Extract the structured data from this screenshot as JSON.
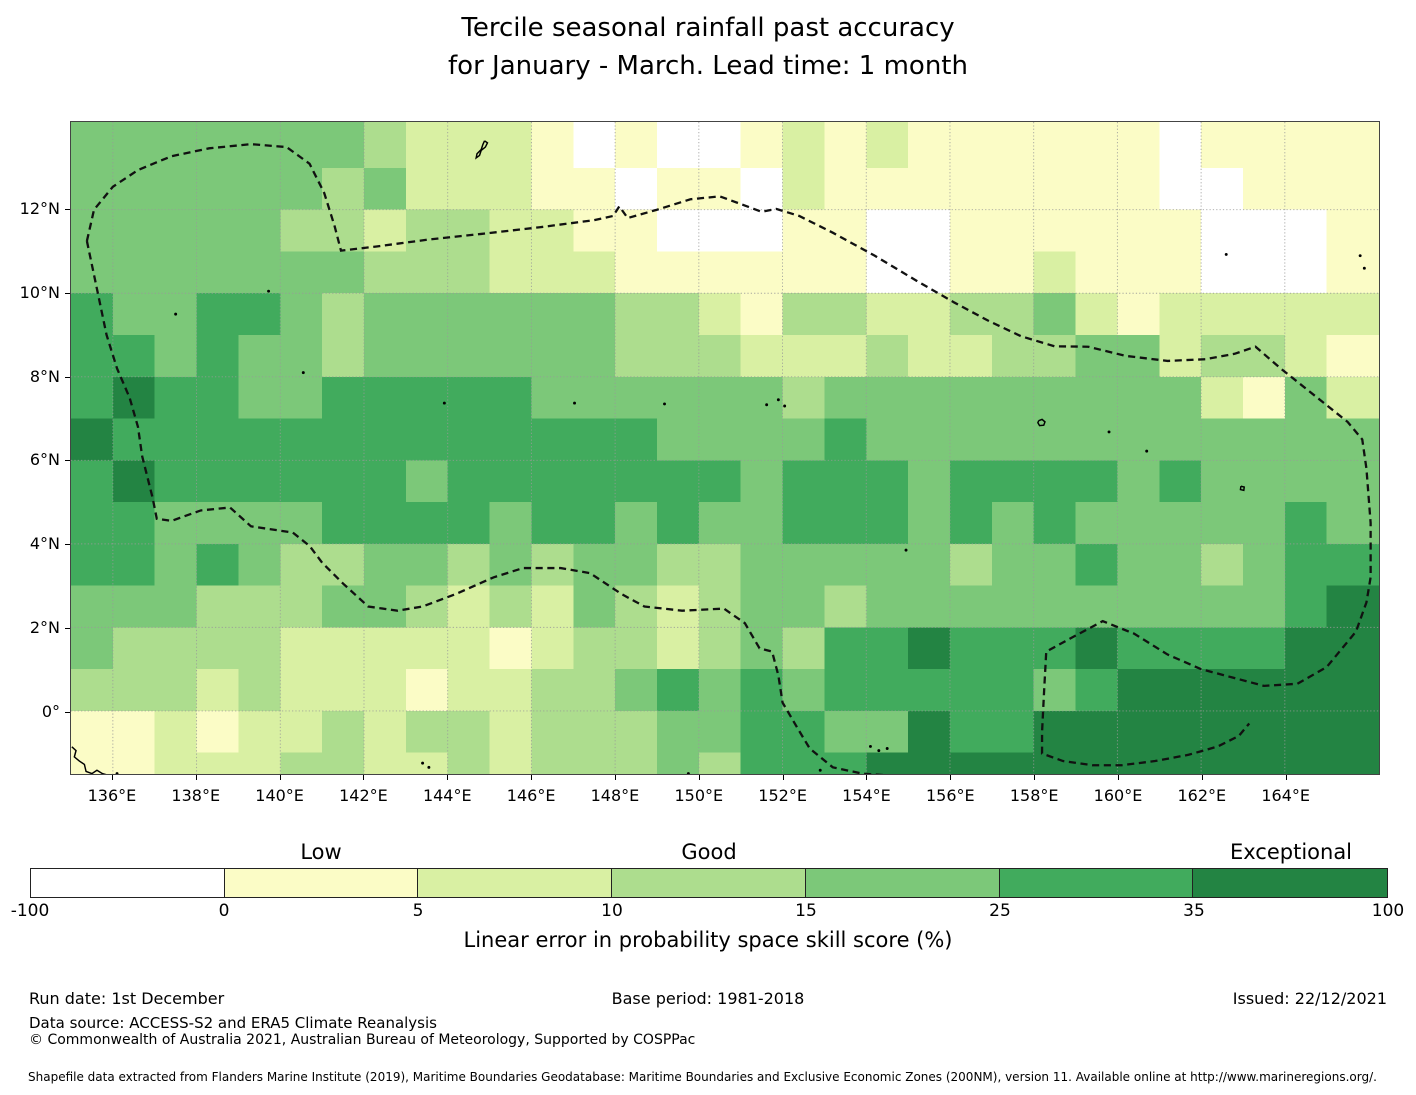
{
  "header": {
    "title_line1": "Tercile seasonal rainfall past accuracy",
    "title_line2": "for January - March. Lead time: 1 month"
  },
  "footer": {
    "run_date": "Run date: 1st December",
    "base_period": "Base period: 1981-2018",
    "issued": "Issued: 22/12/2021",
    "data_source": "Data source: ACCESS-S2 and ERA5 Climate Reanalysis",
    "copyright": "© Commonwealth of Australia 2021, Australian Bureau of Meteorology, Supported by COSPPac",
    "shapefile_note": "Shapefile data extracted from Flanders Marine Institute (2019), Maritime Boundaries Geodatabase: Maritime Boundaries and Exclusive Economic Zones (200NM), version 11. Available online at http://www.marineregions.org/."
  },
  "chart_data": {
    "type": "heatmap",
    "title": "Tercile seasonal rainfall past accuracy for January - March. Lead time: 1 month",
    "x_axis": {
      "tick_labels": [
        "136°E",
        "138°E",
        "140°E",
        "142°E",
        "144°E",
        "146°E",
        "148°E",
        "150°E",
        "152°E",
        "154°E",
        "156°E",
        "158°E",
        "160°E",
        "162°E",
        "164°E"
      ],
      "tick_lons": [
        136,
        138,
        140,
        142,
        144,
        146,
        148,
        150,
        152,
        154,
        156,
        158,
        160,
        162,
        164
      ],
      "range_lon": [
        135.0,
        166.25
      ]
    },
    "y_axis": {
      "tick_labels": [
        "12°N",
        "10°N",
        "8°N",
        "6°N",
        "4°N",
        "2°N",
        "0°"
      ],
      "tick_lats": [
        12,
        10,
        8,
        6,
        4,
        2,
        0
      ],
      "range_lat": [
        -1.51,
        14.1
      ]
    },
    "grid_on": true,
    "cell_size_deg": 1,
    "palette": [
      "#ffffff",
      "#fbfcc6",
      "#d9f0a3",
      "#addd8e",
      "#7cc879",
      "#41ab5d",
      "#238443"
    ],
    "grid_rows_top_lat": 14,
    "grid_rows": [
      "4444444322210100121211111101111",
      "4444443422211011021111111100111",
      "4444433233221100011001111110001",
      "4444444333222111111001121110001",
      "5445543444444332133223342122222",
      "5545443444444333222322334423321",
      "5655445555544444434444444442142",
      "6555555555555544445444444444444",
      "5655555545555555455545555454444",
      "5544445555455454455545454444454",
      "5545433443434433444443445443455",
      "4443334432324323443444444444456",
      "4333322222123323435565556555566",
      "3332322212233454545555545666666",
      "1121223233233344554465566666666",
      "1122233223233343555666666666666"
    ],
    "colorbar": {
      "boundary_labels": [
        "-100",
        "0",
        "5",
        "10",
        "15",
        "25",
        "35",
        "100"
      ],
      "segment_colors": [
        "#ffffff",
        "#fbfcc6",
        "#d9f0a3",
        "#addd8e",
        "#7cc879",
        "#41ab5d",
        "#238443"
      ],
      "quality_labels": [
        {
          "text": "Low",
          "segment_center": 1.5
        },
        {
          "text": "Good",
          "segment_center": 3.5
        },
        {
          "text": "Exceptional",
          "segment_center": 6.5
        }
      ],
      "axis_label": "Linear error in probability space skill score (%)"
    },
    "eez_boundary_polylines": [
      [
        [
          135.38,
          11.25
        ],
        [
          135.55,
          12.0
        ],
        [
          136.0,
          12.55
        ],
        [
          136.6,
          12.95
        ],
        [
          137.4,
          13.28
        ],
        [
          138.3,
          13.47
        ],
        [
          139.3,
          13.57
        ],
        [
          140.15,
          13.5
        ],
        [
          140.7,
          13.1
        ],
        [
          141.05,
          12.4
        ],
        [
          141.3,
          11.6
        ],
        [
          141.45,
          11.02
        ],
        [
          142.3,
          11.12
        ],
        [
          143.5,
          11.28
        ],
        [
          144.8,
          11.42
        ],
        [
          146.2,
          11.58
        ],
        [
          147.5,
          11.75
        ],
        [
          147.95,
          11.85
        ],
        [
          148.1,
          12.08
        ],
        [
          148.3,
          11.8
        ],
        [
          149.0,
          12.0
        ],
        [
          149.8,
          12.25
        ],
        [
          150.5,
          12.32
        ],
        [
          151.1,
          12.1
        ],
        [
          151.5,
          11.95
        ],
        [
          151.85,
          12.02
        ],
        [
          152.4,
          11.85
        ],
        [
          153.2,
          11.45
        ],
        [
          154.2,
          10.9
        ],
        [
          155.2,
          10.3
        ],
        [
          156.1,
          9.78
        ],
        [
          156.9,
          9.35
        ],
        [
          157.7,
          8.97
        ],
        [
          158.5,
          8.73
        ],
        [
          159.3,
          8.72
        ],
        [
          160.2,
          8.5
        ],
        [
          161.2,
          8.38
        ],
        [
          162.1,
          8.42
        ],
        [
          162.8,
          8.55
        ],
        [
          163.3,
          8.72
        ],
        [
          163.9,
          8.2
        ],
        [
          164.5,
          7.72
        ],
        [
          165.0,
          7.32
        ],
        [
          165.5,
          6.92
        ],
        [
          165.85,
          6.5
        ],
        [
          165.95,
          5.8
        ],
        [
          166.05,
          4.5
        ],
        [
          166.05,
          3.2
        ],
        [
          165.95,
          2.6
        ],
        [
          165.7,
          1.9
        ],
        [
          165.0,
          1.05
        ],
        [
          164.3,
          0.65
        ],
        [
          163.5,
          0.6
        ],
        [
          162.75,
          0.8
        ],
        [
          162.0,
          1.0
        ],
        [
          161.2,
          1.35
        ],
        [
          160.4,
          1.85
        ],
        [
          159.65,
          2.15
        ],
        [
          158.9,
          1.75
        ],
        [
          158.3,
          1.42
        ],
        [
          158.25,
          0.5
        ],
        [
          158.2,
          -0.5
        ],
        [
          158.2,
          -1.02
        ],
        [
          158.7,
          -1.2
        ],
        [
          159.4,
          -1.3
        ],
        [
          160.1,
          -1.3
        ],
        [
          160.9,
          -1.2
        ],
        [
          161.7,
          -1.05
        ],
        [
          162.4,
          -0.85
        ],
        [
          162.9,
          -0.6
        ],
        [
          163.15,
          -0.3
        ]
      ],
      [
        [
          135.38,
          11.25
        ],
        [
          135.6,
          10.2
        ],
        [
          135.85,
          9.0
        ],
        [
          136.1,
          8.2
        ],
        [
          136.4,
          7.5
        ],
        [
          136.6,
          6.8
        ],
        [
          136.7,
          6.1
        ],
        [
          136.95,
          5.1
        ],
        [
          137.05,
          4.6
        ],
        [
          137.4,
          4.55
        ],
        [
          138.1,
          4.8
        ],
        [
          138.8,
          4.87
        ],
        [
          139.3,
          4.42
        ],
        [
          140.3,
          4.27
        ],
        [
          140.7,
          3.95
        ],
        [
          141.0,
          3.55
        ],
        [
          141.5,
          3.05
        ],
        [
          142.1,
          2.5
        ],
        [
          142.8,
          2.4
        ],
        [
          143.4,
          2.5
        ],
        [
          144.2,
          2.8
        ],
        [
          145.1,
          3.2
        ],
        [
          145.8,
          3.42
        ],
        [
          146.7,
          3.42
        ],
        [
          147.4,
          3.3
        ],
        [
          148.15,
          2.8
        ],
        [
          148.7,
          2.5
        ],
        [
          149.6,
          2.4
        ],
        [
          150.6,
          2.45
        ],
        [
          151.1,
          2.1
        ],
        [
          151.45,
          1.5
        ],
        [
          151.75,
          1.42
        ],
        [
          151.9,
          0.85
        ],
        [
          152.0,
          0.2
        ],
        [
          152.35,
          -0.4
        ],
        [
          152.65,
          -0.9
        ],
        [
          153.2,
          -1.35
        ],
        [
          153.9,
          -1.5
        ],
        [
          154.6,
          -1.55
        ],
        [
          155.4,
          -1.55
        ]
      ]
    ],
    "island_outlines": [
      [
        [
          144.88,
          13.65
        ],
        [
          144.95,
          13.6
        ],
        [
          144.9,
          13.5
        ],
        [
          144.8,
          13.42
        ],
        [
          144.76,
          13.3
        ],
        [
          144.68,
          13.24
        ],
        [
          144.7,
          13.34
        ],
        [
          144.8,
          13.44
        ],
        [
          144.84,
          13.56
        ],
        [
          144.88,
          13.65
        ]
      ],
      [
        [
          135.02,
          -0.86
        ],
        [
          135.12,
          -0.95
        ],
        [
          135.08,
          -1.1
        ],
        [
          135.2,
          -1.2
        ],
        [
          135.32,
          -1.28
        ],
        [
          135.36,
          -1.45
        ],
        [
          135.5,
          -1.5
        ],
        [
          135.62,
          -1.42
        ],
        [
          135.75,
          -1.5
        ],
        [
          135.92,
          -1.55
        ]
      ],
      [
        [
          158.12,
          6.95
        ],
        [
          158.2,
          6.98
        ],
        [
          158.27,
          6.92
        ],
        [
          158.24,
          6.84
        ],
        [
          158.14,
          6.83
        ],
        [
          158.1,
          6.9
        ],
        [
          158.12,
          6.95
        ]
      ],
      [
        [
          162.95,
          5.38
        ],
        [
          163.03,
          5.36
        ],
        [
          163.02,
          5.28
        ],
        [
          162.94,
          5.3
        ],
        [
          162.95,
          5.38
        ]
      ]
    ],
    "island_dots": [
      [
        137.5,
        9.5
      ],
      [
        139.72,
        10.05
      ],
      [
        140.55,
        8.1
      ],
      [
        143.92,
        7.37
      ],
      [
        147.03,
        7.37
      ],
      [
        149.18,
        7.35
      ],
      [
        151.62,
        7.33
      ],
      [
        151.9,
        7.45
      ],
      [
        152.05,
        7.3
      ],
      [
        154.95,
        3.85
      ],
      [
        160.7,
        6.22
      ],
      [
        159.8,
        6.68
      ],
      [
        162.6,
        10.93
      ],
      [
        165.8,
        10.9
      ],
      [
        165.9,
        10.6
      ],
      [
        154.1,
        -0.85
      ],
      [
        154.3,
        -0.95
      ],
      [
        154.5,
        -0.9
      ],
      [
        149.75,
        -1.5
      ],
      [
        152.9,
        -1.42
      ],
      [
        143.4,
        -1.25
      ],
      [
        143.55,
        -1.35
      ],
      [
        136.1,
        -1.5
      ],
      [
        136.3,
        -1.55
      ]
    ],
    "gridline_color": "#999999",
    "boundary_color": "#111111"
  }
}
